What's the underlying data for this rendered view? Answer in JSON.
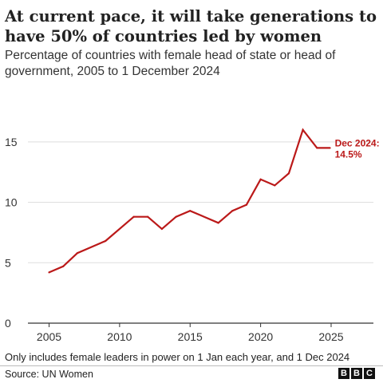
{
  "header": {
    "title": "At current pace, it will take generations to have 50% of countries led by women",
    "subtitle": "Percentage of countries with female head of state or head of government, 2005 to 1 December 2024"
  },
  "footer": {
    "note": "Only includes female leaders in power on 1 Jan each year, and 1 Dec 2024",
    "source": "Source: UN Women",
    "logo_letters": [
      "B",
      "B",
      "C"
    ]
  },
  "chart_data": {
    "type": "line",
    "x": [
      2005,
      2006,
      2007,
      2009,
      2011,
      2012,
      2013,
      2014,
      2015,
      2017,
      2018,
      2019,
      2020,
      2021,
      2022,
      2023,
      2024,
      2024.92
    ],
    "values": [
      4.2,
      4.7,
      5.8,
      6.8,
      8.8,
      8.8,
      7.8,
      8.8,
      9.3,
      8.3,
      9.3,
      9.8,
      11.9,
      11.4,
      12.4,
      16.0,
      14.5,
      14.5
    ],
    "xlim": [
      2003.5,
      2028
    ],
    "ylim": [
      0,
      17.5
    ],
    "xticks": [
      "2005",
      "2010",
      "2015",
      "2020",
      "2025"
    ],
    "yticks": [
      "0",
      "5",
      "10",
      "15"
    ],
    "grid": true,
    "line_color": "#bb1919",
    "annotation": {
      "line1": "Dec 2024:",
      "line2": "14.5%"
    }
  }
}
